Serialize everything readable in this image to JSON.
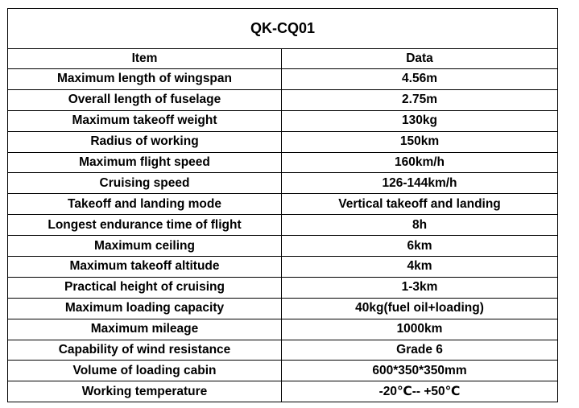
{
  "table": {
    "title": "QK-CQ01",
    "columns": [
      "Item",
      "Data"
    ],
    "rows": [
      [
        "Maximum length of wingspan",
        "4.56m"
      ],
      [
        "Overall length of fuselage",
        "2.75m"
      ],
      [
        "Maximum takeoff weight",
        "130kg"
      ],
      [
        "Radius of working",
        "150km"
      ],
      [
        "Maximum flight speed",
        "160km/h"
      ],
      [
        "Cruising speed",
        "126-144km/h"
      ],
      [
        "Takeoff and landing mode",
        "Vertical takeoff and landing"
      ],
      [
        "Longest endurance time of flight",
        "8h"
      ],
      [
        "Maximum ceiling",
        "6km"
      ],
      [
        "Maximum takeoff altitude",
        "4km"
      ],
      [
        "Practical height of cruising",
        "1-3km"
      ],
      [
        "Maximum loading capacity",
        "40kg(fuel oil+loading)"
      ],
      [
        "Maximum mileage",
        "1000km"
      ],
      [
        "Capability of wind resistance",
        "Grade 6"
      ],
      [
        "Volume of loading cabin",
        "600*350*350mm"
      ],
      [
        "Working temperature",
        "-20℃-- +50℃"
      ]
    ]
  }
}
